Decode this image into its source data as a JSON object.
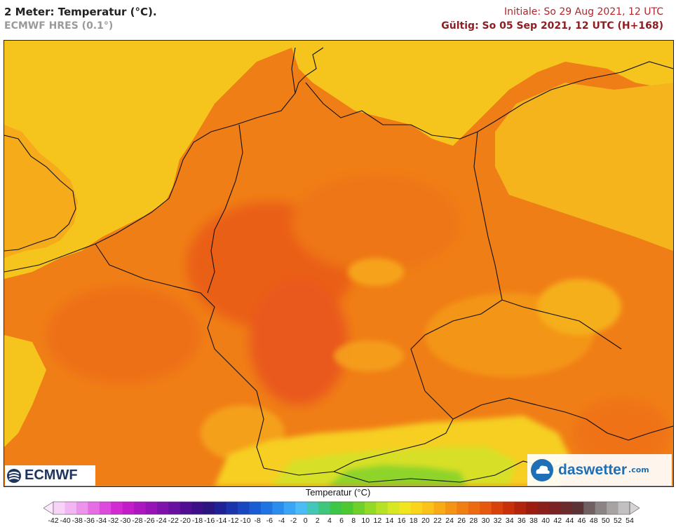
{
  "header": {
    "title": "2 Meter: Temperatur (°C).",
    "model": "ECMWF HRES (0.1°)",
    "init": "Initiale: So 29 Aug 2021, 12 UTC",
    "valid": "Gültig: So 05 Sep 2021, 12 UTC (H+168)"
  },
  "logos": {
    "ecmwf": "ECMWF",
    "daswetter": "daswetter",
    "daswetter_domain": ".com"
  },
  "legend": {
    "title": "Temperatur (°C)",
    "ticks": [
      "-42",
      "-40",
      "-38",
      "-36",
      "-34",
      "-32",
      "-30",
      "-28",
      "-26",
      "-24",
      "-22",
      "-20",
      "-18",
      "-16",
      "-14",
      "-12",
      "-10",
      "-8",
      "-6",
      "-4",
      "-2",
      "0",
      "2",
      "4",
      "6",
      "8",
      "10",
      "12",
      "14",
      "16",
      "18",
      "20",
      "22",
      "24",
      "26",
      "28",
      "30",
      "32",
      "34",
      "36",
      "38",
      "40",
      "42",
      "44",
      "46",
      "48",
      "50",
      "52",
      "54"
    ],
    "colors": [
      "#f7d4f7",
      "#f2b6f2",
      "#ec93ec",
      "#e56ee5",
      "#dd4bdd",
      "#d22bd2",
      "#c21dc9",
      "#ac18bf",
      "#9614b5",
      "#7f12ab",
      "#68109f",
      "#520e93",
      "#3d1087",
      "#2a167e",
      "#1f2294",
      "#1a34ab",
      "#1947c0",
      "#1a5dd3",
      "#1f74e1",
      "#2a8ced",
      "#3aa5f4",
      "#4cbcf7",
      "#44c7b9",
      "#3ec77c",
      "#3cc546",
      "#4ec830",
      "#6ed02a",
      "#93d928",
      "#b6e126",
      "#d7e724",
      "#f1e51f",
      "#f9d41b",
      "#fbc319",
      "#f9ab17",
      "#f59414",
      "#f07e12",
      "#ec6a10",
      "#e6580e",
      "#d9410c",
      "#c7300b",
      "#b2240b",
      "#9c1d10",
      "#8a1f1b",
      "#7a2324",
      "#6b2b2c",
      "#5c3334",
      "#706061",
      "#8a8485",
      "#a7a3a3",
      "#c2c0c0"
    ]
  },
  "map": {
    "region": "Central Europe",
    "colors": {
      "sea": "#f6c51d",
      "sea_warm": "#f6ab1a",
      "land_base": "#f07e17",
      "land_warm": "#ec6a14",
      "highland": "#f59a1a",
      "mountain": "#f6cf22",
      "alpine": "#9bd92a",
      "borders": "#111111"
    }
  }
}
